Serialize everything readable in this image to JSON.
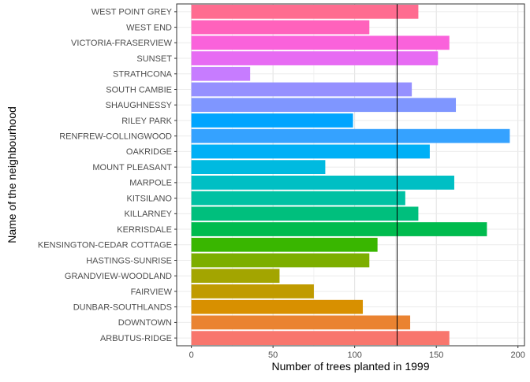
{
  "chart_data": {
    "type": "bar",
    "orientation": "horizontal",
    "xlabel": "Number of trees planted in 1999",
    "ylabel": "Name of the neighbourhood",
    "xlim": [
      -9,
      204
    ],
    "xticks": [
      0,
      50,
      100,
      150,
      200
    ],
    "grid": true,
    "legend": "none",
    "reference_line": {
      "value": 126,
      "color": "#000000"
    },
    "categories": [
      "ARBUTUS-RIDGE",
      "DOWNTOWN",
      "DUNBAR-SOUTHLANDS",
      "FAIRVIEW",
      "GRANDVIEW-WOODLAND",
      "HASTINGS-SUNRISE",
      "KENSINGTON-CEDAR COTTAGE",
      "KERRISDALE",
      "KILLARNEY",
      "KITSILANO",
      "MARPOLE",
      "MOUNT PLEASANT",
      "OAKRIDGE",
      "RENFREW-COLLINGWOOD",
      "RILEY PARK",
      "SHAUGHNESSY",
      "SOUTH CAMBIE",
      "STRATHCONA",
      "SUNSET",
      "VICTORIA-FRASERVIEW",
      "WEST END",
      "WEST POINT GREY"
    ],
    "values": [
      158,
      134,
      105,
      75,
      54,
      109,
      114,
      181,
      139,
      131,
      161,
      82,
      146,
      195,
      99,
      162,
      135,
      36,
      151,
      158,
      109,
      139
    ],
    "colors": [
      "#F8766D",
      "#EA8331",
      "#D89000",
      "#C09B00",
      "#A3A500",
      "#7CAE00",
      "#39B600",
      "#00BB4E",
      "#00BF7D",
      "#00C1A3",
      "#00BFC4",
      "#00BAE0",
      "#00B0F6",
      "#35A2FF",
      "#00A5FF",
      "#7F96FF",
      "#9590FF",
      "#C77CFF",
      "#E76BF3",
      "#FA62DB",
      "#FF62BC",
      "#FF6C90"
    ]
  }
}
